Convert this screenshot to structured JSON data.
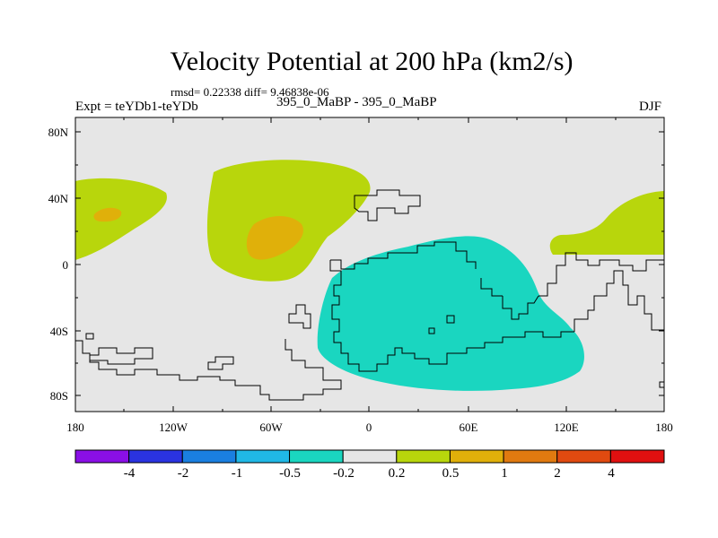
{
  "title": "Velocity Potential at 200 hPa (km2/s)",
  "stats": "rmsd= 0.22338 diff= 9.46838e-06",
  "left_label": "Expt = teYDb1-teYDb",
  "center_label": "395_0_MaBP - 395_0_MaBP",
  "right_label": "DJF",
  "lat_labels": [
    "80N",
    "40N",
    "0",
    "40S",
    "80S"
  ],
  "lon_labels": [
    "180",
    "120W",
    "60W",
    "0",
    "60E",
    "120E",
    "180"
  ],
  "colorbar": {
    "colors": [
      "#8a0fe6",
      "#2a33e0",
      "#1a7fe0",
      "#20b8e6",
      "#1ad6c0",
      "#e6e6e6",
      "#b8d60c",
      "#e0b00a",
      "#e07a10",
      "#e04a10",
      "#e01010"
    ],
    "labels": [
      "-4",
      "-2",
      "-1",
      "-0.5",
      "-0.2",
      "0.2",
      "0.5",
      "1",
      "2",
      "4"
    ]
  },
  "colors": {
    "background_field": "#e6e6e6",
    "positive_weak": "#b8d60c",
    "positive_mid": "#e0b00a",
    "negative_weak": "#1ad6c0"
  }
}
